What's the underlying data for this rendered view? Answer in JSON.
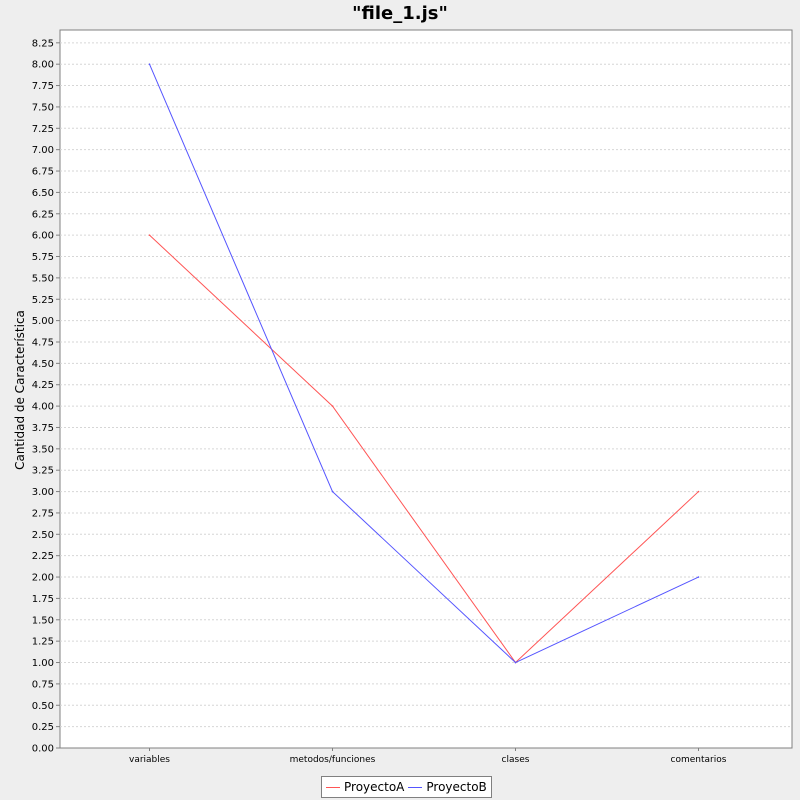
{
  "chart_data": {
    "type": "line",
    "title": "\"file_1.js\"",
    "xlabel": "",
    "ylabel": "Cantidad de Característica",
    "categories": [
      "variables",
      "metodos/funciones",
      "clases",
      "comentarios"
    ],
    "series": [
      {
        "name": "ProyectoA",
        "values": [
          6,
          4,
          1,
          3
        ],
        "color": "#ff5555"
      },
      {
        "name": "ProyectoB",
        "values": [
          8,
          3,
          1,
          2
        ],
        "color": "#5555ff"
      }
    ],
    "ylim": [
      0,
      8.4
    ],
    "ytick_step": 0.25,
    "y_ticks": [
      "0.00",
      "0.25",
      "0.50",
      "0.75",
      "1.00",
      "1.25",
      "1.50",
      "1.75",
      "2.00",
      "2.25",
      "2.50",
      "2.75",
      "3.00",
      "3.25",
      "3.50",
      "3.75",
      "4.00",
      "4.25",
      "4.50",
      "4.75",
      "5.00",
      "5.25",
      "5.50",
      "5.75",
      "6.00",
      "6.25",
      "6.50",
      "6.75",
      "7.00",
      "7.25",
      "7.50",
      "7.75",
      "8.00",
      "8.25"
    ],
    "grid": true,
    "legend_position": "bottom-center",
    "plot_background": "#ffffff",
    "grid_color": "#d6d6d6"
  }
}
